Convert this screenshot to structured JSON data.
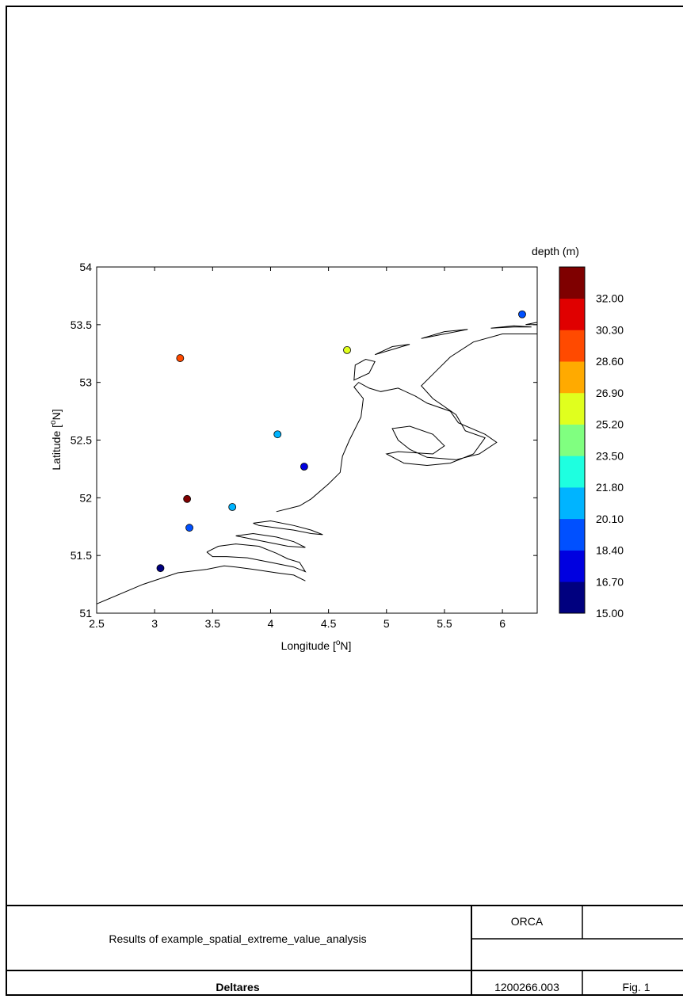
{
  "chart_data": {
    "type": "scatter",
    "xlabel": "Longitude [",
    "xlabel_sup": "o",
    "xlabel_end": "N]",
    "ylabel": "Latitude [",
    "ylabel_sup": "o",
    "ylabel_end": "N]",
    "xlim": [
      2.5,
      6.3
    ],
    "ylim": [
      51,
      54
    ],
    "xticks": [
      "2.5",
      "3",
      "3.5",
      "4",
      "4.5",
      "5",
      "5.5",
      "6"
    ],
    "xtick_values": [
      2.5,
      3,
      3.5,
      4,
      4.5,
      5,
      5.5,
      6
    ],
    "yticks": [
      "51",
      "51.5",
      "52",
      "52.5",
      "53",
      "53.5",
      "54"
    ],
    "ytick_values": [
      51,
      51.5,
      52,
      52.5,
      53,
      53.5,
      54
    ],
    "grid": false,
    "colorbar": {
      "title": "depth (m)",
      "labels": [
        "15.00",
        "16.70",
        "18.40",
        "20.10",
        "21.80",
        "23.50",
        "25.20",
        "26.90",
        "28.60",
        "30.30",
        "32.00"
      ],
      "bounds": [
        15.0,
        16.7,
        18.4,
        20.1,
        21.8,
        23.5,
        25.2,
        26.9,
        28.6,
        30.3,
        32.0,
        33.7
      ],
      "colors": [
        "#00007f",
        "#0000e0",
        "#0050ff",
        "#00b4ff",
        "#1effe0",
        "#80ff80",
        "#e0ff1e",
        "#ffaa00",
        "#ff4a00",
        "#e00000",
        "#7f0000"
      ]
    },
    "points": [
      {
        "lon": 3.05,
        "lat": 51.39,
        "depth": 15.5
      },
      {
        "lon": 3.3,
        "lat": 51.74,
        "depth": 19.0
      },
      {
        "lon": 3.28,
        "lat": 51.99,
        "depth": 33.0
      },
      {
        "lon": 3.67,
        "lat": 51.92,
        "depth": 21.0
      },
      {
        "lon": 4.29,
        "lat": 52.27,
        "depth": 17.5
      },
      {
        "lon": 4.06,
        "lat": 52.55,
        "depth": 21.0
      },
      {
        "lon": 3.22,
        "lat": 53.21,
        "depth": 29.0
      },
      {
        "lon": 4.66,
        "lat": 53.28,
        "depth": 25.5
      },
      {
        "lon": 6.17,
        "lat": 53.59,
        "depth": 19.0
      }
    ],
    "coastline": [
      [
        [
          2.5,
          51.08
        ],
        [
          2.9,
          51.25
        ],
        [
          3.2,
          51.35
        ],
        [
          3.45,
          51.38
        ],
        [
          3.6,
          51.41
        ],
        [
          3.7,
          51.4
        ],
        [
          3.85,
          51.38
        ],
        [
          4.05,
          51.35
        ],
        [
          4.2,
          51.33
        ],
        [
          4.3,
          51.28
        ]
      ],
      [
        [
          3.45,
          51.53
        ],
        [
          3.55,
          51.58
        ],
        [
          3.7,
          51.6
        ],
        [
          3.9,
          51.58
        ],
        [
          4.05,
          51.52
        ],
        [
          4.15,
          51.47
        ],
        [
          4.25,
          51.44
        ],
        [
          4.3,
          51.36
        ],
        [
          4.2,
          51.4
        ],
        [
          4.0,
          51.44
        ],
        [
          3.8,
          51.48
        ],
        [
          3.62,
          51.49
        ],
        [
          3.5,
          51.49
        ],
        [
          3.45,
          51.53
        ]
      ],
      [
        [
          3.7,
          51.67
        ],
        [
          3.85,
          51.69
        ],
        [
          4.05,
          51.66
        ],
        [
          4.2,
          51.62
        ],
        [
          4.3,
          51.57
        ],
        [
          4.15,
          51.58
        ],
        [
          4.0,
          51.61
        ],
        [
          3.85,
          51.64
        ],
        [
          3.7,
          51.67
        ]
      ],
      [
        [
          3.85,
          51.78
        ],
        [
          4.0,
          51.8
        ],
        [
          4.2,
          51.76
        ],
        [
          4.35,
          51.72
        ],
        [
          4.45,
          51.68
        ],
        [
          4.35,
          51.69
        ],
        [
          4.2,
          51.72
        ],
        [
          4.05,
          51.74
        ],
        [
          3.9,
          51.76
        ],
        [
          3.85,
          51.78
        ]
      ],
      [
        [
          4.05,
          51.88
        ],
        [
          4.25,
          51.93
        ],
        [
          4.35,
          51.99
        ],
        [
          4.5,
          52.12
        ],
        [
          4.6,
          52.22
        ],
        [
          4.62,
          52.36
        ],
        [
          4.68,
          52.5
        ],
        [
          4.78,
          52.7
        ],
        [
          4.8,
          52.86
        ],
        [
          4.72,
          52.96
        ],
        [
          4.76,
          53.0
        ],
        [
          4.85,
          52.95
        ],
        [
          4.95,
          52.92
        ],
        [
          5.1,
          52.95
        ],
        [
          5.25,
          52.88
        ],
        [
          5.35,
          52.82
        ],
        [
          5.55,
          52.75
        ],
        [
          5.62,
          52.65
        ],
        [
          5.85,
          52.55
        ],
        [
          5.95,
          52.48
        ],
        [
          5.8,
          52.38
        ],
        [
          5.6,
          52.33
        ],
        [
          5.35,
          52.35
        ],
        [
          5.2,
          52.42
        ],
        [
          5.1,
          52.5
        ],
        [
          5.05,
          52.6
        ],
        [
          5.2,
          52.62
        ],
        [
          5.4,
          52.55
        ],
        [
          5.5,
          52.45
        ],
        [
          5.4,
          52.38
        ],
        [
          5.1,
          52.4
        ],
        [
          5.0,
          52.38
        ],
        [
          5.15,
          52.3
        ],
        [
          5.35,
          52.28
        ],
        [
          5.55,
          52.3
        ],
        [
          5.75,
          52.38
        ],
        [
          5.85,
          52.52
        ],
        [
          5.68,
          52.58
        ],
        [
          5.6,
          52.72
        ],
        [
          5.4,
          52.86
        ],
        [
          5.3,
          52.97
        ],
        [
          5.45,
          53.12
        ],
        [
          5.55,
          53.22
        ],
        [
          5.75,
          53.35
        ],
        [
          6.0,
          53.42
        ],
        [
          6.3,
          53.42
        ]
      ]
    ],
    "islands": [
      [
        [
          4.72,
          53.02
        ],
        [
          4.85,
          53.08
        ],
        [
          4.9,
          53.18
        ],
        [
          4.82,
          53.2
        ],
        [
          4.73,
          53.15
        ],
        [
          4.72,
          53.02
        ]
      ],
      [
        [
          4.9,
          53.24
        ],
        [
          5.1,
          53.3
        ],
        [
          5.2,
          53.33
        ],
        [
          5.05,
          53.31
        ],
        [
          4.9,
          53.24
        ]
      ],
      [
        [
          5.3,
          53.38
        ],
        [
          5.6,
          53.44
        ],
        [
          5.7,
          53.46
        ],
        [
          5.5,
          53.44
        ],
        [
          5.3,
          53.38
        ]
      ],
      [
        [
          5.9,
          53.47
        ],
        [
          6.1,
          53.48
        ],
        [
          6.25,
          53.48
        ],
        [
          6.1,
          53.49
        ],
        [
          5.9,
          53.47
        ]
      ],
      [
        [
          6.2,
          53.5
        ],
        [
          6.3,
          53.52
        ],
        [
          6.3,
          53.5
        ],
        [
          6.2,
          53.5
        ]
      ]
    ]
  },
  "title_block": {
    "description": "Results of example_spatial_extreme_value_analysis",
    "system": "ORCA",
    "organisation": "Deltares",
    "project_number": "1200266.003",
    "figure_number": "Fig. 1"
  }
}
